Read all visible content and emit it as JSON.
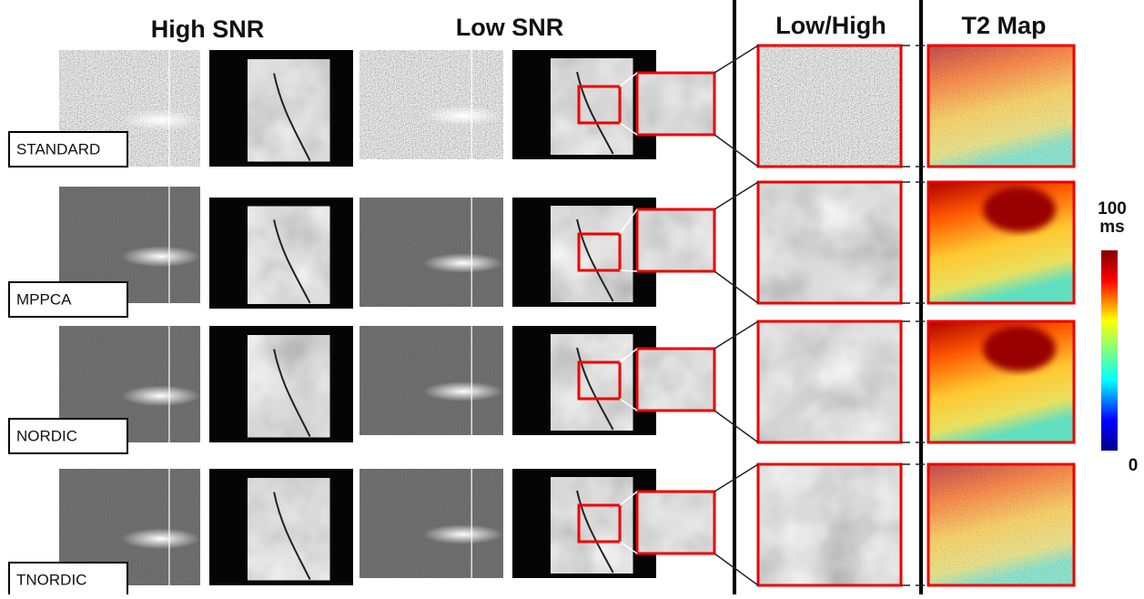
{
  "headers": [
    "High SNR",
    "Low SNR",
    "Low/High",
    "T2 Map"
  ],
  "rows": [
    {
      "label": "STANDARD"
    },
    {
      "label": "MPPCA"
    },
    {
      "label": "NORDIC"
    },
    {
      "label": "TNORDIC"
    }
  ],
  "colorbar": {
    "max": "100",
    "unit": "ms",
    "min": "0"
  }
}
